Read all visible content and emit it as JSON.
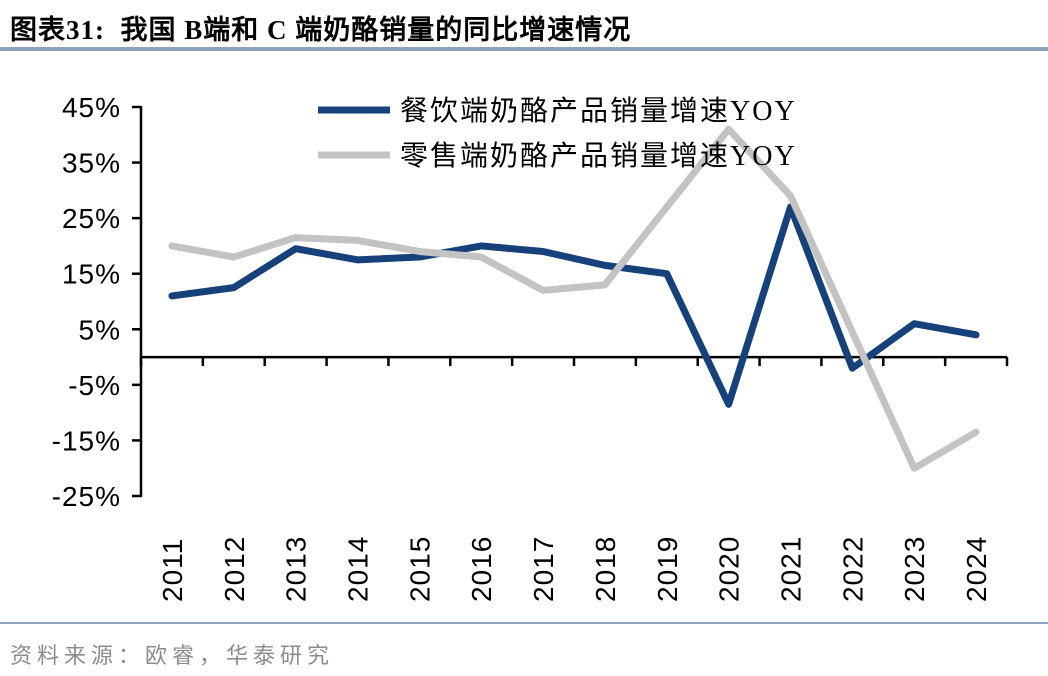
{
  "header": {
    "title": "图表31:  我国 B端和 C 端奶酪销量的同比增速情况"
  },
  "source": {
    "label": "资料来源：欧睿，华泰研究"
  },
  "colors": {
    "accent_rule": "#8EA4BC",
    "axis": "#000000",
    "source_text": "#8C8C8C",
    "series_catering": "#17417A",
    "series_retail": "#C3C3C3"
  },
  "chart_data": {
    "type": "line",
    "title": "我国 B端和 C 端奶酪销量的同比增速情况",
    "x": [
      "2011",
      "2012",
      "2013",
      "2014",
      "2015",
      "2016",
      "2017",
      "2018",
      "2019",
      "2020",
      "2021",
      "2022",
      "2023",
      "2024"
    ],
    "series": [
      {
        "name": "餐饮端奶酪产品销量增速YOY",
        "key": "catering",
        "color": "#17417A",
        "values": [
          11,
          12.5,
          19.5,
          17.5,
          18,
          20,
          19,
          16.5,
          15,
          -8.5,
          27,
          -2,
          6,
          4
        ]
      },
      {
        "name": "零售端奶酪产品销量增速YOY",
        "key": "retail",
        "color": "#C3C3C3",
        "values": [
          20,
          18,
          21.5,
          21,
          19,
          18,
          12,
          13,
          27,
          41,
          29,
          4.5,
          -20,
          -13.5
        ]
      }
    ],
    "xlabel": "",
    "ylabel": "",
    "ylim": [
      -25,
      45
    ],
    "ytick_step": 10,
    "ytick_suffix": "%",
    "grid": false,
    "legend_position": "top-center"
  }
}
